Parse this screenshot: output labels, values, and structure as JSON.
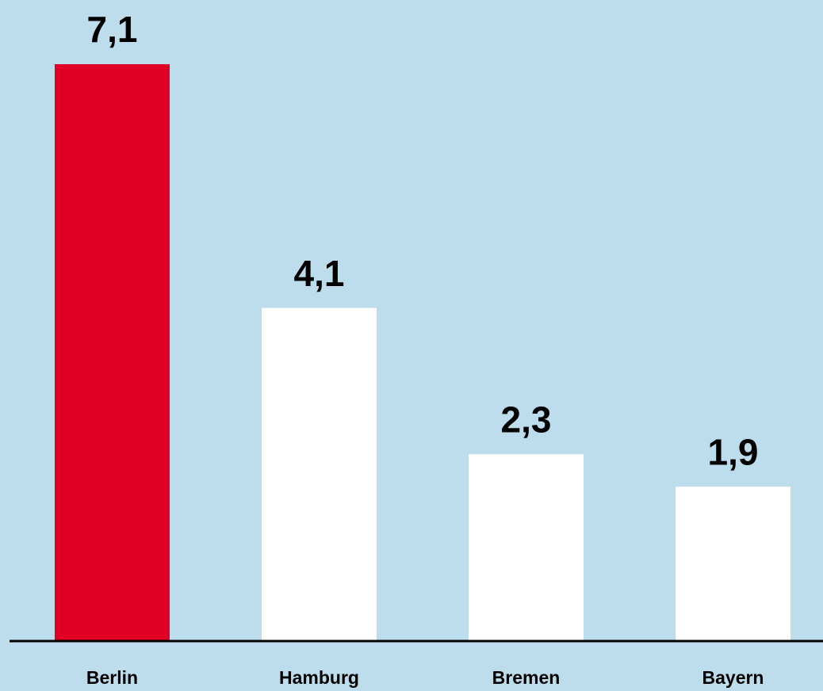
{
  "chart_data": {
    "type": "bar",
    "categories": [
      "Berlin",
      "Hamburg",
      "Bremen",
      "Bayern"
    ],
    "values": [
      7.1,
      4.1,
      2.3,
      1.9
    ],
    "value_labels": [
      "7,1",
      "4,1",
      "2,3",
      "1,9"
    ],
    "colors": [
      "#e10025",
      "#ffffff",
      "#ffffff",
      "#ffffff"
    ]
  }
}
